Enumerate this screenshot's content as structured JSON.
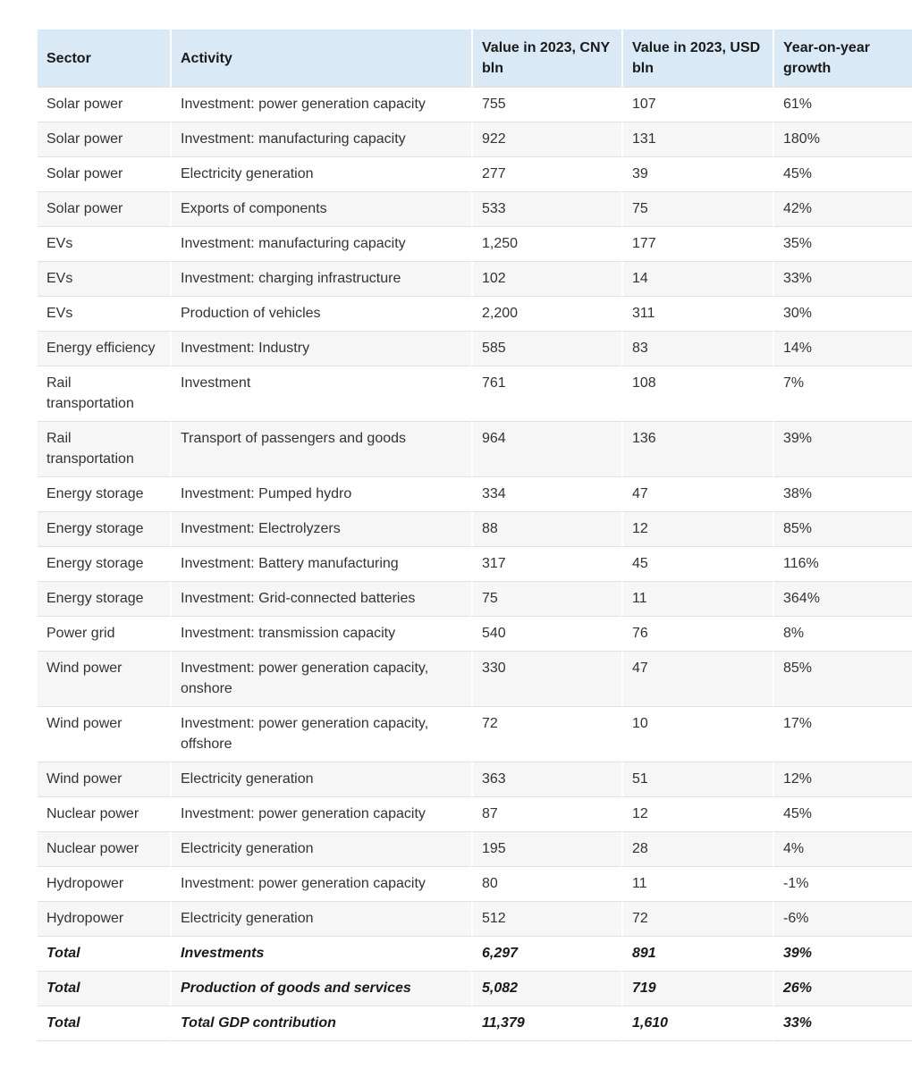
{
  "colors": {
    "header_bg": "#d9eaf6",
    "stripe": "#f6f6f6",
    "row_border": "#e0e0e0",
    "text": "#333333",
    "strong_text": "#1a1a1a"
  },
  "chart_data": {
    "type": "table",
    "columns": [
      "Sector",
      "Activity",
      "Value in 2023, CNY bln",
      "Value in 2023, USD bln",
      "Year-on-year growth"
    ],
    "rows": [
      {
        "sector": "Solar power",
        "activity": "Investment: power generation capacity",
        "cny": "755",
        "usd": "107",
        "growth": "61%",
        "is_total": false
      },
      {
        "sector": "Solar power",
        "activity": "Investment: manufacturing capacity",
        "cny": "922",
        "usd": "131",
        "growth": "180%",
        "is_total": false
      },
      {
        "sector": "Solar power",
        "activity": "Electricity generation",
        "cny": "277",
        "usd": "39",
        "growth": "45%",
        "is_total": false
      },
      {
        "sector": "Solar power",
        "activity": "Exports of components",
        "cny": "533",
        "usd": "75",
        "growth": "42%",
        "is_total": false
      },
      {
        "sector": "EVs",
        "activity": "Investment: manufacturing capacity",
        "cny": "1,250",
        "usd": "177",
        "growth": "35%",
        "is_total": false
      },
      {
        "sector": "EVs",
        "activity": "Investment: charging infrastructure",
        "cny": "102",
        "usd": "14",
        "growth": "33%",
        "is_total": false
      },
      {
        "sector": "EVs",
        "activity": "Production of vehicles",
        "cny": "2,200",
        "usd": "311",
        "growth": "30%",
        "is_total": false
      },
      {
        "sector": "Energy efficiency",
        "activity": "Investment: Industry",
        "cny": "585",
        "usd": "83",
        "growth": "14%",
        "is_total": false
      },
      {
        "sector": "Rail transportation",
        "activity": "Investment",
        "cny": "761",
        "usd": "108",
        "growth": "7%",
        "is_total": false
      },
      {
        "sector": "Rail transportation",
        "activity": "Transport of passengers and goods",
        "cny": "964",
        "usd": "136",
        "growth": "39%",
        "is_total": false
      },
      {
        "sector": "Energy storage",
        "activity": "Investment: Pumped hydro",
        "cny": "334",
        "usd": "47",
        "growth": "38%",
        "is_total": false
      },
      {
        "sector": "Energy storage",
        "activity": "Investment: Electrolyzers",
        "cny": "88",
        "usd": "12",
        "growth": "85%",
        "is_total": false
      },
      {
        "sector": "Energy storage",
        "activity": "Investment: Battery manufacturing",
        "cny": "317",
        "usd": "45",
        "growth": "116%",
        "is_total": false
      },
      {
        "sector": "Energy storage",
        "activity": "Investment: Grid-connected batteries",
        "cny": "75",
        "usd": "11",
        "growth": "364%",
        "is_total": false
      },
      {
        "sector": "Power grid",
        "activity": "Investment: transmission capacity",
        "cny": "540",
        "usd": "76",
        "growth": "8%",
        "is_total": false
      },
      {
        "sector": "Wind power",
        "activity": "Investment: power generation capacity, onshore",
        "cny": "330",
        "usd": "47",
        "growth": "85%",
        "is_total": false
      },
      {
        "sector": "Wind power",
        "activity": "Investment: power generation capacity, offshore",
        "cny": "72",
        "usd": "10",
        "growth": "17%",
        "is_total": false
      },
      {
        "sector": "Wind power",
        "activity": "Electricity generation",
        "cny": "363",
        "usd": "51",
        "growth": "12%",
        "is_total": false
      },
      {
        "sector": "Nuclear power",
        "activity": "Investment: power generation capacity",
        "cny": "87",
        "usd": "12",
        "growth": "45%",
        "is_total": false
      },
      {
        "sector": "Nuclear power",
        "activity": "Electricity generation",
        "cny": "195",
        "usd": "28",
        "growth": "4%",
        "is_total": false
      },
      {
        "sector": "Hydropower",
        "activity": "Investment: power generation capacity",
        "cny": "80",
        "usd": "11",
        "growth": "-1%",
        "is_total": false
      },
      {
        "sector": "Hydropower",
        "activity": "Electricity generation",
        "cny": "512",
        "usd": "72",
        "growth": "-6%",
        "is_total": false
      },
      {
        "sector": "Total",
        "activity": "Investments",
        "cny": "6,297",
        "usd": "891",
        "growth": "39%",
        "is_total": true
      },
      {
        "sector": "Total",
        "activity": "Production of goods and services",
        "cny": "5,082",
        "usd": "719",
        "growth": "26%",
        "is_total": true
      },
      {
        "sector": "Total",
        "activity": "Total GDP contribution",
        "cny": "11,379",
        "usd": "1,610",
        "growth": "33%",
        "is_total": true
      }
    ]
  }
}
